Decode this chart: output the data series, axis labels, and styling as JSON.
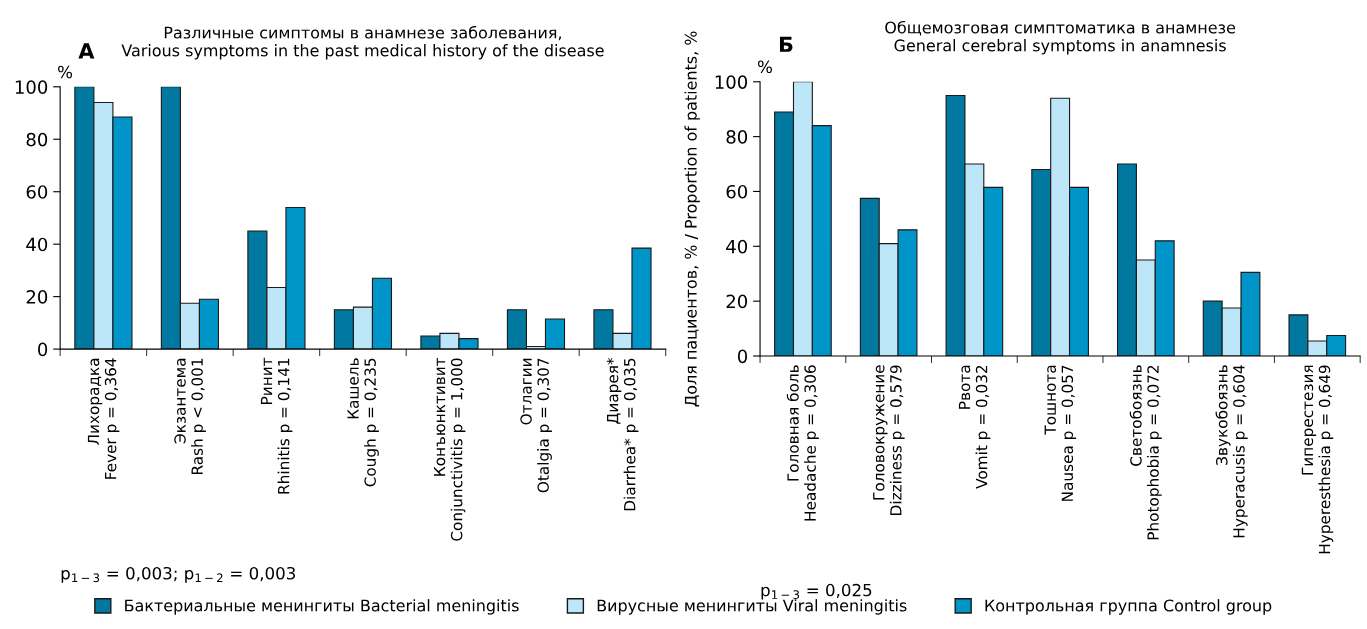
{
  "chart_data": [
    {
      "type": "bar",
      "title": "Различные симптомы в анамнезе заболевания,\nVarious symptoms in the past medical history of the disease",
      "categories": [
        "Лихорадка\nFever p = 0,364",
        "Экзантема\nRash p < 0,001",
        "Ринит\nRhinitis p = 0,141",
        "Кашель\nCough p = 0,235",
        "Конъюнктивит\nConjunctivitis p = 1,000",
        "Отлагии\nOtalgia p = 0,307",
        "Диарея*\nDiarrhea* p = 0,035"
      ],
      "series": [
        {
          "name": "Бактериальные менингиты Bacterial meningitis",
          "color": "#00789f",
          "values": [
            100,
            100,
            45,
            15,
            5,
            15,
            15
          ]
        },
        {
          "name": "Вирусные менингиты Viral meningitis",
          "color": "#bde6f8",
          "values": [
            94,
            17.5,
            23.5,
            16,
            6,
            1,
            6
          ]
        },
        {
          "name": "Контрольная группа Control group",
          "color": "#0095c8",
          "values": [
            88.5,
            19,
            54,
            27,
            4,
            11.5,
            38.5
          ]
        }
      ],
      "ylim": [
        0,
        100
      ],
      "yticks": [
        0,
        20,
        40,
        60,
        80,
        100
      ],
      "grid": false,
      "legend": "bottom",
      "annotations": [
        "А",
        "%",
        "p$_{1−3}$ = 0,003; p$_{1−2}$ = 0,003"
      ]
    },
    {
      "type": "bar",
      "title": "Общемозговая симптоматика в анамнезе\nGeneral cerebral symptoms in anamnesis",
      "ylabel": "Доля пациентов, % / Proportion of patients, %",
      "categories": [
        "Головная боль\nHeadache p = 0,306",
        "Головокружение\nDizziness p = 0,579",
        "Рвота\nVomit p = 0,032",
        "Тошнота\nNausea p = 0,057",
        "Светобоязнь\nPhotophobia p = 0,072",
        "Звукобоязнь\nHyperacusis p = 0,604",
        "Гиперестезия\nHyperesthesia p = 0,649"
      ],
      "series": [
        {
          "color": "#00789f",
          "values": [
            89,
            57.5,
            95,
            68,
            70,
            20,
            15
          ]
        },
        {
          "color": "#bde6f8",
          "values": [
            100,
            41,
            70,
            94,
            35,
            17.5,
            5.5
          ]
        },
        {
          "color": "#0095c8",
          "values": [
            84,
            46,
            61.5,
            61.5,
            42,
            30.5,
            7.5
          ]
        }
      ],
      "ylim": [
        0,
        100
      ],
      "yticks": [
        0,
        20,
        40,
        60,
        80,
        100
      ],
      "grid": false,
      "annotations": [
        "Б",
        "%",
        "p$_{1−3}$ = 0,025"
      ]
    }
  ]
}
